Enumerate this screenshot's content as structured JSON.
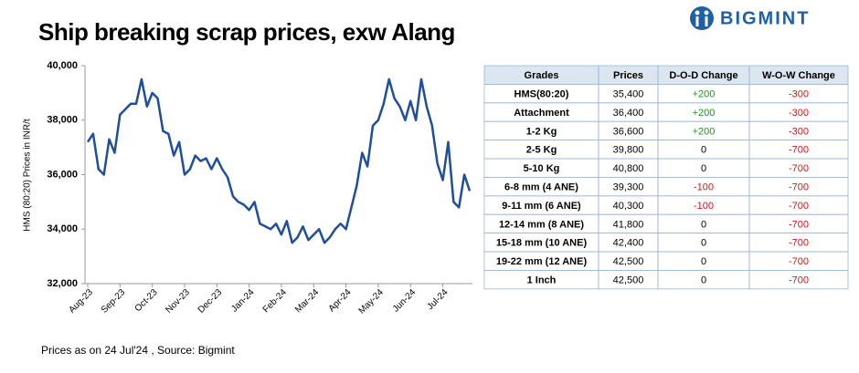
{
  "brand": "BIGMINT",
  "chart_data": {
    "type": "line",
    "title": "Ship breaking scrap prices, exw Alang",
    "y_label": "HMS (80:20) Prices in INR/t",
    "categories": [
      "Aug-23",
      null,
      null,
      null,
      null,
      null,
      "Sep-23",
      null,
      null,
      null,
      null,
      null,
      "Oct-23",
      null,
      null,
      null,
      null,
      null,
      "Nov-23",
      null,
      null,
      null,
      null,
      null,
      "Dec-23",
      null,
      null,
      null,
      null,
      null,
      "Jan-24",
      null,
      null,
      null,
      null,
      null,
      "Feb-24",
      null,
      null,
      null,
      null,
      null,
      "Mar-24",
      null,
      null,
      null,
      null,
      null,
      "Apr-24",
      null,
      null,
      null,
      null,
      null,
      "May-24",
      null,
      null,
      null,
      null,
      null,
      "Jun-24",
      null,
      null,
      null,
      null,
      null,
      "Jul-24",
      null,
      null,
      null,
      null,
      null
    ],
    "series": [
      {
        "name": "HMS (80:20)",
        "color": "#1f4e9c",
        "values": [
          37200,
          37500,
          36200,
          36000,
          37300,
          36800,
          38200,
          38400,
          38600,
          38600,
          39500,
          38500,
          39000,
          38800,
          37600,
          37500,
          36700,
          37200,
          36000,
          36200,
          36700,
          36500,
          36600,
          36200,
          36600,
          36200,
          35900,
          35200,
          35000,
          34900,
          34700,
          35000,
          34200,
          34100,
          34000,
          34200,
          33800,
          34300,
          33500,
          33700,
          34100,
          33600,
          33800,
          34000,
          33500,
          33700,
          34000,
          34200,
          34000,
          34800,
          35600,
          36800,
          36300,
          37800,
          38000,
          38600,
          39500,
          38800,
          38500,
          38000,
          38700,
          38000,
          39500,
          38500,
          37800,
          36400,
          35800,
          37200,
          35000,
          34800,
          36000,
          35400
        ]
      }
    ],
    "ylim": [
      32000,
      40000
    ],
    "yticks": [
      {
        "value": 32000,
        "label": "32,000"
      },
      {
        "value": 34000,
        "label": "34,000"
      },
      {
        "value": 36000,
        "label": "36,000"
      },
      {
        "value": 38000,
        "label": "38,000"
      },
      {
        "value": 40000,
        "label": "40,000"
      }
    ],
    "grid": false
  },
  "table": {
    "header": [
      "Grades",
      "Prices",
      "D-O-D Change",
      "W-O-W Change"
    ],
    "rows": [
      [
        "HMS(80:20)",
        "35,400",
        "+200",
        "-300"
      ],
      [
        "Attachment",
        "36,400",
        "+200",
        "-300"
      ],
      [
        "1-2 Kg",
        "36,600",
        "+200",
        "-300"
      ],
      [
        "2-5 Kg",
        "39,800",
        "0",
        "-700"
      ],
      [
        "5-10 Kg",
        "40,800",
        "0",
        "-700"
      ],
      [
        "6-8 mm (4 ANE)",
        "39,300",
        "-100",
        "-700"
      ],
      [
        "9-11 mm (6 ANE)",
        "40,300",
        "-100",
        "-700"
      ],
      [
        "12-14 mm (8 ANE)",
        "41,800",
        "0",
        "-700"
      ],
      [
        "15-18 mm (10 ANE)",
        "42,400",
        "0",
        "-700"
      ],
      [
        "19-22 mm (12 ANE)",
        "42,500",
        "0",
        "-700"
      ],
      [
        "1 Inch",
        "42,500",
        "0",
        "-700"
      ]
    ]
  },
  "footnote": "Prices as on 24 Jul'24 , Source: Bigmint"
}
